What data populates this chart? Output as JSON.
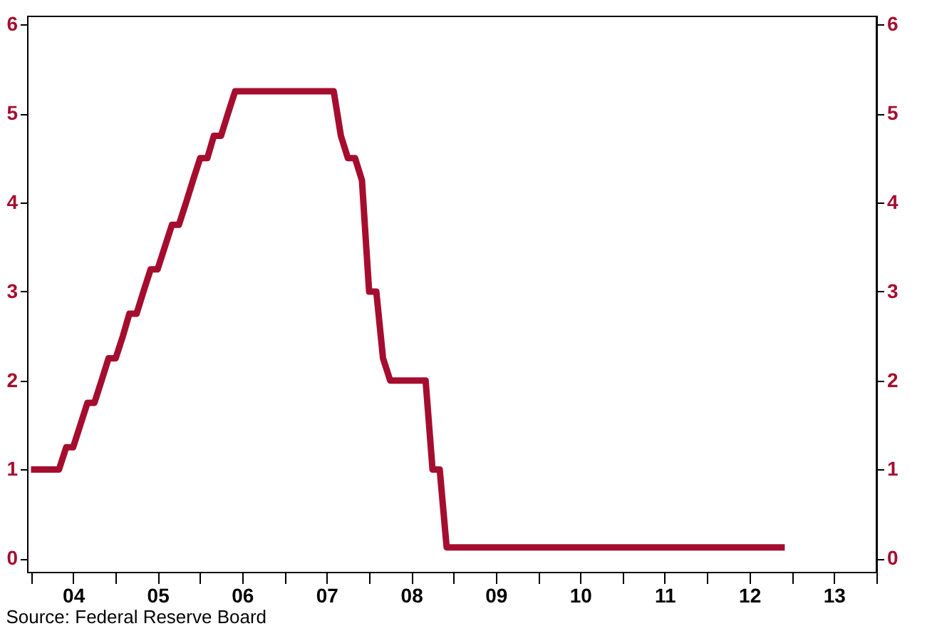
{
  "chart_data": {
    "type": "line",
    "x": [
      "2004-01",
      "2004-05",
      "2004-06",
      "2004-07",
      "2004-08",
      "2004-09",
      "2004-10",
      "2004-11",
      "2004-12",
      "2005-01",
      "2005-02",
      "2005-03",
      "2005-04",
      "2005-05",
      "2005-06",
      "2005-07",
      "2005-08",
      "2005-09",
      "2005-10",
      "2005-11",
      "2005-12",
      "2006-01",
      "2006-02",
      "2006-03",
      "2006-04",
      "2006-05",
      "2006-06",
      "2007-08",
      "2007-09",
      "2007-10",
      "2007-11",
      "2007-12",
      "2008-01",
      "2008-02",
      "2008-03",
      "2008-04",
      "2008-09",
      "2008-10",
      "2008-11",
      "2008-12",
      "2012-12"
    ],
    "series": [
      {
        "color": "#a50d2f",
        "values": [
          1,
          1,
          1.25,
          1.25,
          1.5,
          1.75,
          1.75,
          2,
          2.25,
          2.25,
          2.5,
          2.75,
          2.75,
          3,
          3.25,
          3.25,
          3.5,
          3.75,
          3.75,
          4,
          4.25,
          4.5,
          4.5,
          4.75,
          4.75,
          5,
          5.25,
          5.25,
          4.75,
          4.5,
          4.5,
          4.25,
          3,
          3,
          2.25,
          2,
          2,
          1,
          1,
          0.125,
          0.125
        ]
      }
    ],
    "xlim": [
      "2003-12-15",
      "2014-01-01"
    ],
    "xticks": [
      {
        "value": "2004-01-01",
        "label": null
      },
      {
        "value": "2004-07-01",
        "label": "04"
      },
      {
        "value": "2005-01-01",
        "label": null
      },
      {
        "value": "2005-07-01",
        "label": "05"
      },
      {
        "value": "2006-01-01",
        "label": null
      },
      {
        "value": "2006-07-01",
        "label": "06"
      },
      {
        "value": "2007-01-01",
        "label": null
      },
      {
        "value": "2007-07-01",
        "label": "07"
      },
      {
        "value": "2008-01-01",
        "label": null
      },
      {
        "value": "2008-07-01",
        "label": "08"
      },
      {
        "value": "2009-01-01",
        "label": null
      },
      {
        "value": "2009-07-01",
        "label": "09"
      },
      {
        "value": "2010-01-01",
        "label": null
      },
      {
        "value": "2010-07-01",
        "label": "10"
      },
      {
        "value": "2011-01-01",
        "label": null
      },
      {
        "value": "2011-07-01",
        "label": "11"
      },
      {
        "value": "2012-01-01",
        "label": null
      },
      {
        "value": "2012-07-01",
        "label": "12"
      },
      {
        "value": "2013-01-01",
        "label": null
      },
      {
        "value": "2013-07-01",
        "label": "13"
      },
      {
        "value": "2014-01-01",
        "label": null
      }
    ],
    "ylim": [
      -0.15,
      6.1
    ],
    "yticks": [
      0,
      1,
      2,
      3,
      4,
      5,
      6
    ],
    "y2lim": [
      -0.15,
      6.1
    ],
    "y2ticks": [
      0,
      1,
      2,
      3,
      4,
      5,
      6
    ],
    "grid": false,
    "marker": "none",
    "line_style": "solid",
    "annotations": [
      "Source:  Federal Reserve Board"
    ]
  }
}
